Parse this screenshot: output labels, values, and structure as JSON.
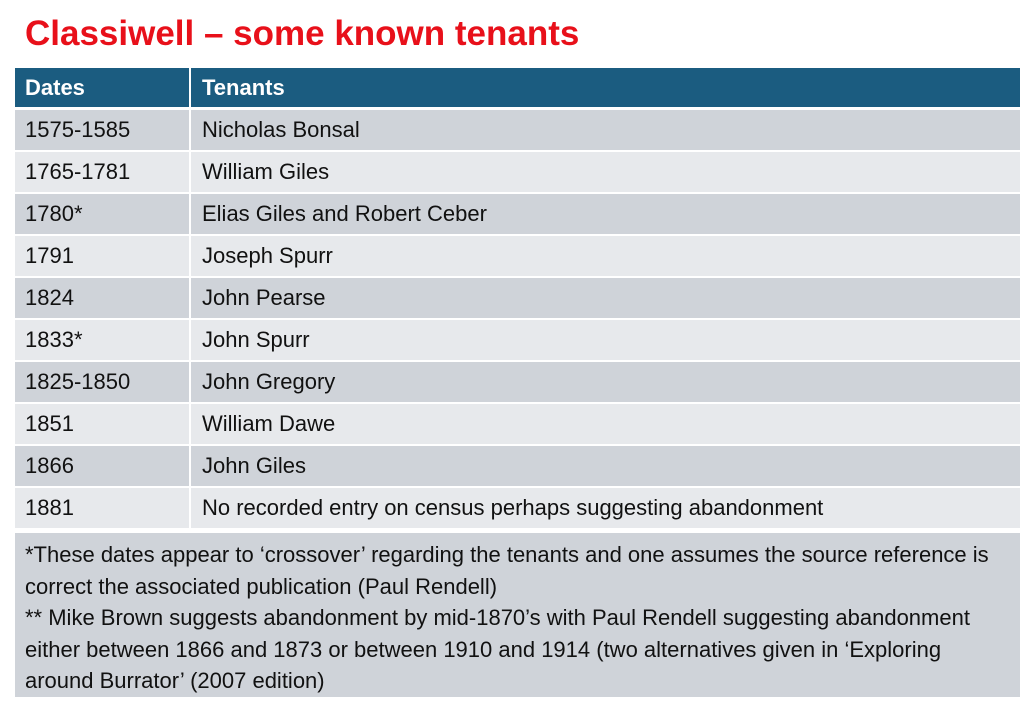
{
  "title": "Classiwell – some known tenants",
  "table": {
    "headers": [
      "Dates",
      "Tenants"
    ],
    "rows": [
      {
        "date": "1575-1585",
        "tenant": "Nicholas Bonsal"
      },
      {
        "date": "1765-1781",
        "tenant": "William Giles"
      },
      {
        "date": "1780*",
        "tenant": "Elias Giles and Robert Ceber"
      },
      {
        "date": "1791",
        "tenant": "Joseph Spurr"
      },
      {
        "date": "1824",
        "tenant": "John Pearse"
      },
      {
        "date": "1833*",
        "tenant": "John Spurr"
      },
      {
        "date": "1825-1850",
        "tenant": "John Gregory"
      },
      {
        "date": "1851",
        "tenant": "William Dawe"
      },
      {
        "date": "1866",
        "tenant": "John Giles"
      },
      {
        "date": "1881",
        "tenant": "No recorded entry on census perhaps suggesting abandonment"
      }
    ]
  },
  "footnotes": {
    "note1": "*These dates appear to ‘crossover’ regarding the tenants and one assumes the source reference is correct the associated publication (Paul Rendell)",
    "note2": "** Mike Brown suggests abandonment by mid-1870’s with Paul Rendell suggesting abandonment either between 1866 and 1873 or between 1910 and 1914 (two alternatives given in ‘Exploring around Burrator’ (2007 edition)"
  },
  "colors": {
    "title": "#e8101a",
    "header_bg": "#1b5c80",
    "row_dark": "#cfd3d9",
    "row_light": "#e7e9ec"
  }
}
